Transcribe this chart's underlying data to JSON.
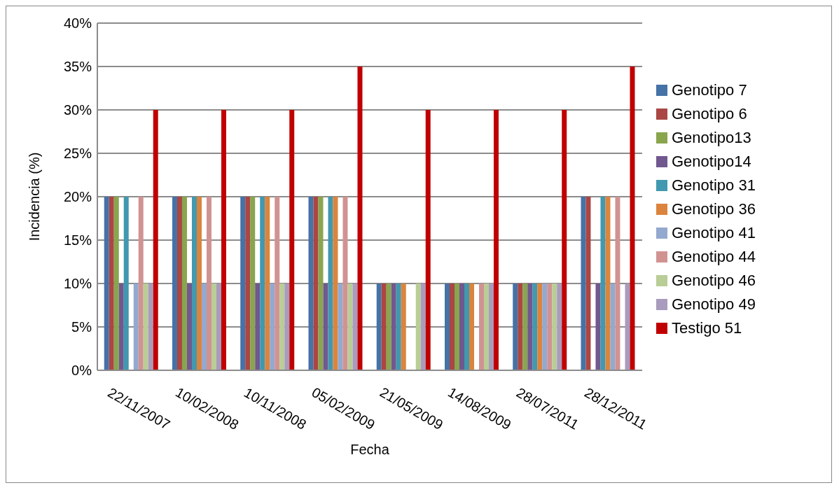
{
  "chart_data": {
    "type": "bar",
    "xlabel": "Fecha",
    "ylabel": "Incidencia (%)",
    "categories": [
      "22/11/2007",
      "10/02/2008",
      "10/11/2008",
      "05/02/2009",
      "21/05/2009",
      "14/08/2009",
      "28/07/2011",
      "28/12/2011"
    ],
    "ylim": [
      0,
      40
    ],
    "yticks": [
      {
        "value": 0,
        "label": "0%"
      },
      {
        "value": 5,
        "label": "5%"
      },
      {
        "value": 10,
        "label": "10%"
      },
      {
        "value": 15,
        "label": "15%"
      },
      {
        "value": 20,
        "label": "20%"
      },
      {
        "value": 25,
        "label": "25%"
      },
      {
        "value": 30,
        "label": "30%"
      },
      {
        "value": 35,
        "label": "35%"
      },
      {
        "value": 40,
        "label": "40%"
      }
    ],
    "grid": "y",
    "legend": "right",
    "series": [
      {
        "name": "Genotipo 7",
        "color": "#4572a7",
        "values": [
          20,
          20,
          20,
          20,
          10,
          10,
          10,
          20
        ]
      },
      {
        "name": "Genotipo 6",
        "color": "#aa4643",
        "values": [
          20,
          20,
          20,
          20,
          10,
          10,
          10,
          20
        ]
      },
      {
        "name": "Genotipo13",
        "color": "#89a54e",
        "values": [
          20,
          20,
          20,
          20,
          10,
          10,
          10,
          null
        ]
      },
      {
        "name": "Genotipo14",
        "color": "#71588f",
        "values": [
          10,
          10,
          10,
          10,
          10,
          10,
          10,
          10
        ]
      },
      {
        "name": "Genotipo 31",
        "color": "#4198af",
        "values": [
          20,
          20,
          20,
          20,
          10,
          10,
          10,
          20
        ]
      },
      {
        "name": "Genotipo 36",
        "color": "#db843d",
        "values": [
          null,
          20,
          20,
          20,
          10,
          10,
          10,
          20
        ]
      },
      {
        "name": "Genotipo 41",
        "color": "#93a9cf",
        "values": [
          10,
          10,
          10,
          10,
          null,
          null,
          10,
          10
        ]
      },
      {
        "name": "Genotipo 44",
        "color": "#d19392",
        "values": [
          20,
          20,
          20,
          20,
          null,
          10,
          10,
          20
        ]
      },
      {
        "name": "Genotipo 46",
        "color": "#b9cd96",
        "values": [
          10,
          10,
          10,
          10,
          10,
          10,
          10,
          null
        ]
      },
      {
        "name": "Genotipo 49",
        "color": "#a99bbd",
        "values": [
          10,
          10,
          10,
          10,
          10,
          10,
          10,
          10
        ]
      },
      {
        "name": "Testigo 51",
        "color": "#c00000",
        "values": [
          30,
          30,
          30,
          35,
          30,
          30,
          30,
          35
        ]
      }
    ]
  }
}
